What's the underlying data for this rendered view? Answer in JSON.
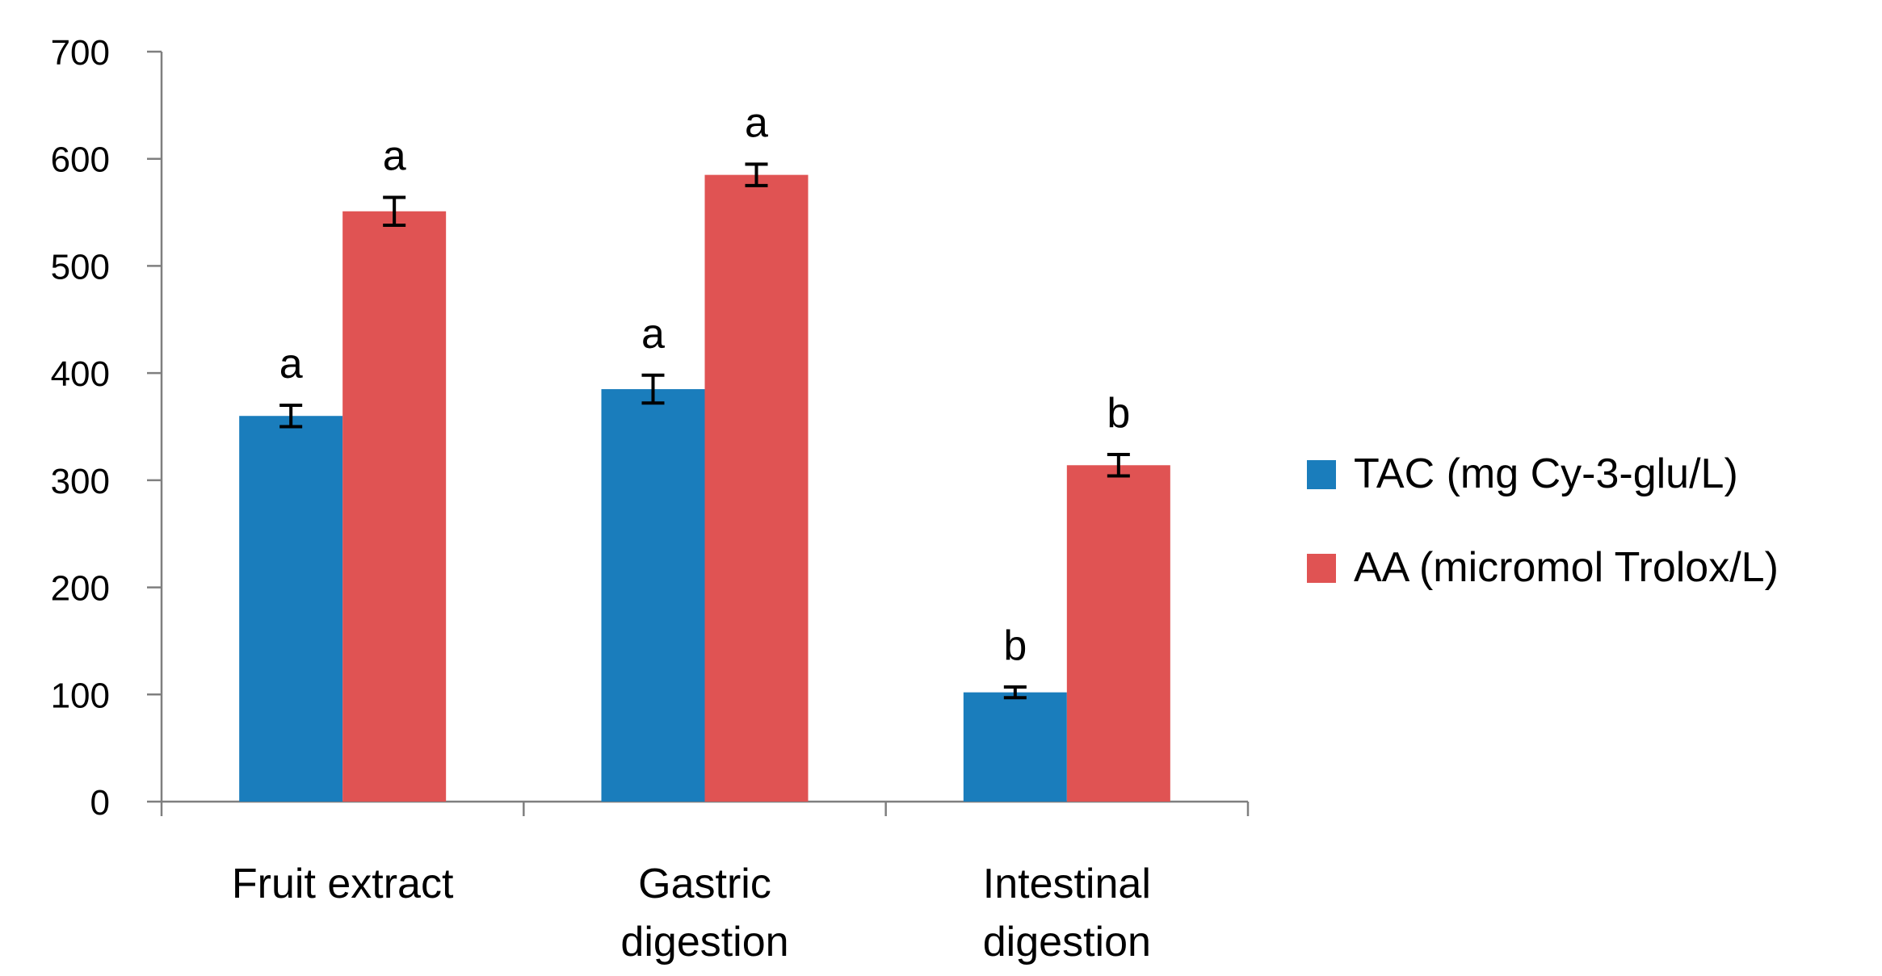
{
  "chart_data": {
    "type": "bar",
    "title": "",
    "xlabel": "",
    "ylabel": "",
    "ylim": [
      0,
      700
    ],
    "yticks": [
      0,
      100,
      200,
      300,
      400,
      500,
      600,
      700
    ],
    "grid": false,
    "legend_position": "right",
    "categories": [
      [
        "Fruit extract"
      ],
      [
        "Gastric",
        "digestion"
      ],
      [
        "Intestinal",
        "digestion"
      ]
    ],
    "series": [
      {
        "name": "TAC (mg Cy-3-glu/L)",
        "color": "#1a7dbc",
        "values": [
          360,
          385,
          102
        ],
        "errors": [
          10,
          13,
          5
        ],
        "significance": [
          "a",
          "a",
          "b"
        ]
      },
      {
        "name": "AA (micromol Trolox/L)",
        "color": "#e05353",
        "values": [
          551,
          585,
          314
        ],
        "errors": [
          13,
          10,
          10
        ],
        "significance": [
          "a",
          "a",
          "b"
        ]
      }
    ]
  }
}
